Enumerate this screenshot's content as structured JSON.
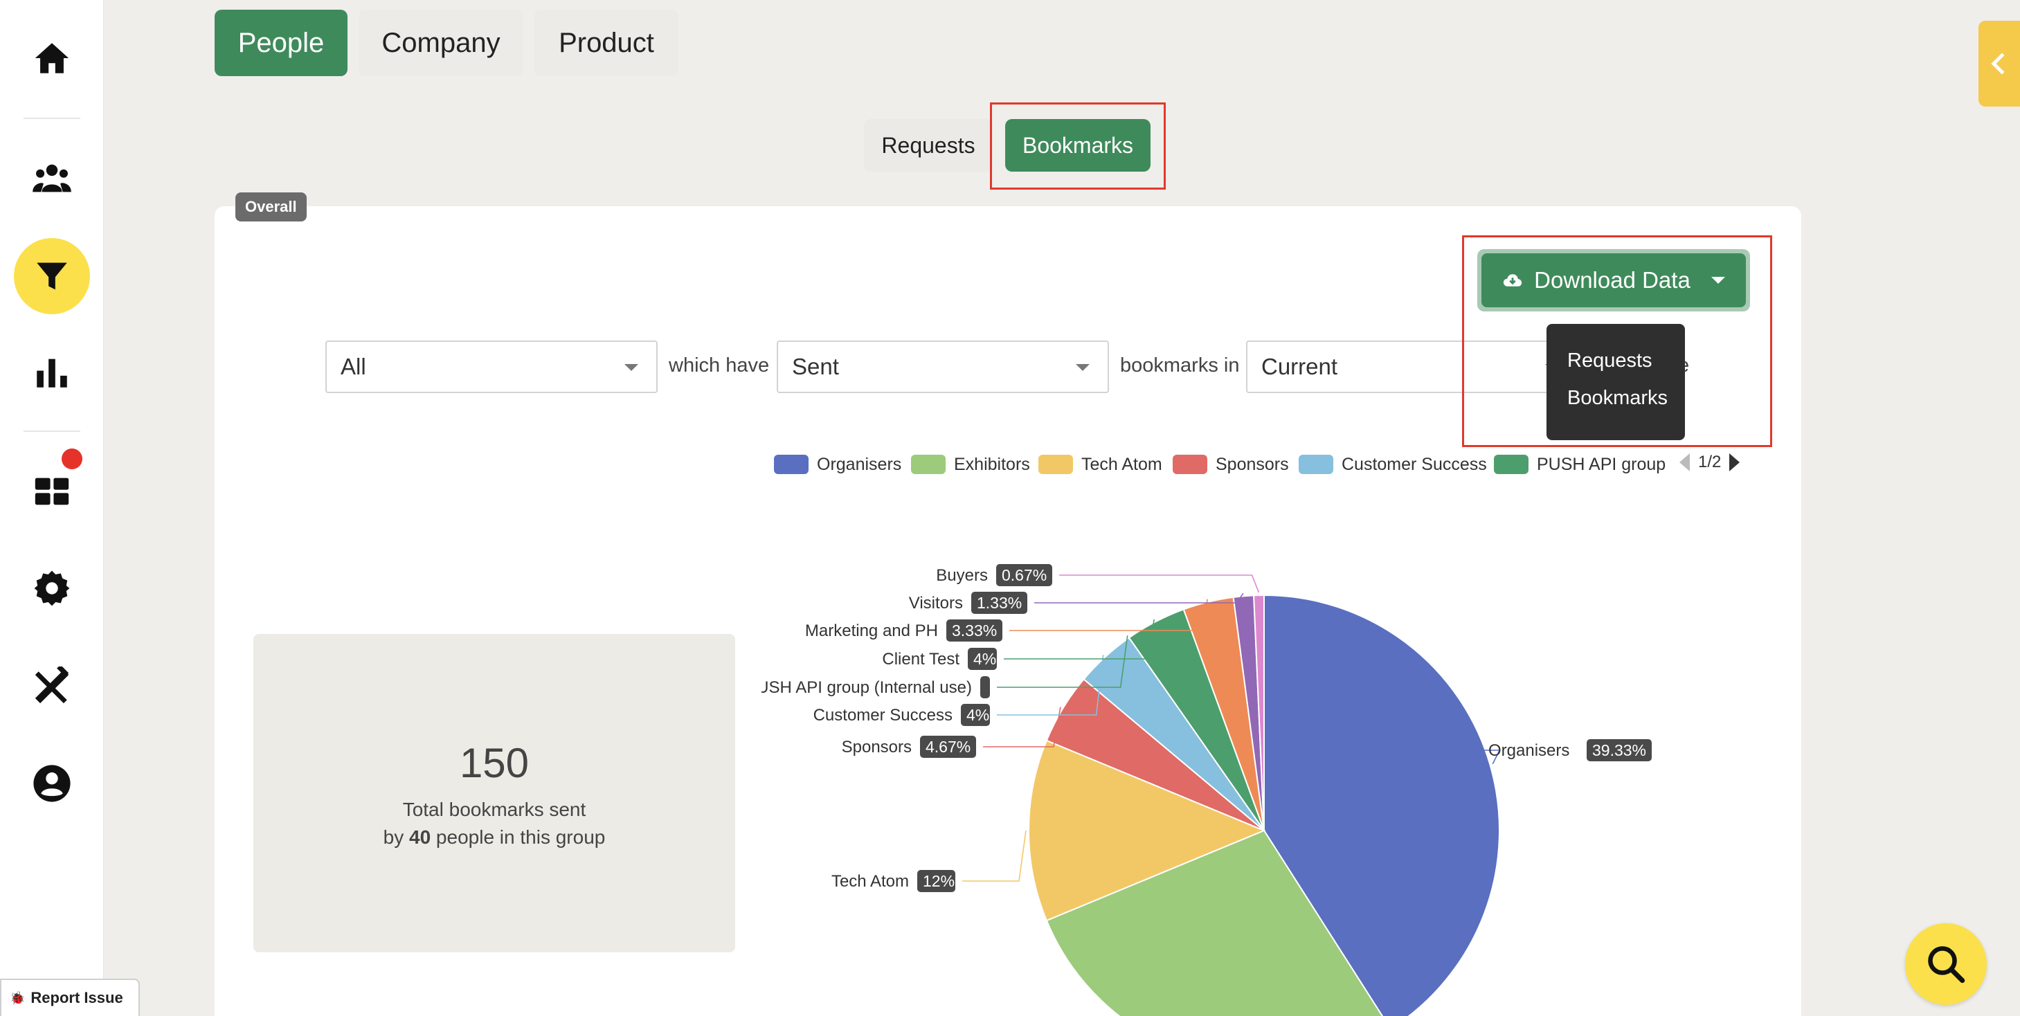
{
  "sidebar": {
    "icons": [
      "home-icon",
      "people-icon",
      "filter-icon",
      "chart-icon",
      "widgets-icon",
      "settings-icon",
      "tools-icon",
      "account-icon"
    ],
    "active": "filter-icon",
    "report_issue_label": "Report Issue"
  },
  "top_tabs": [
    {
      "label": "People",
      "active": true
    },
    {
      "label": "Company",
      "active": false
    },
    {
      "label": "Product",
      "active": false
    }
  ],
  "sub_tabs": [
    {
      "label": "Requests",
      "active": false
    },
    {
      "label": "Bookmarks",
      "active": true
    }
  ],
  "overall_badge": "Overall",
  "download": {
    "label": "Download Data",
    "menu": [
      "Requests",
      "Bookmarks"
    ]
  },
  "filters": {
    "group_value": "All",
    "connector1": "which have",
    "direction_value": "Sent",
    "connector2": "bookmarks in",
    "period_value": "Current",
    "trailing_fragment": "e"
  },
  "legend": {
    "items": [
      {
        "label": "Organisers",
        "color": "#5a6fc0"
      },
      {
        "label": "Exhibitors",
        "color": "#9ccb7b"
      },
      {
        "label": "Tech Atom",
        "color": "#f2c867"
      },
      {
        "label": "Sponsors",
        "color": "#e06a65"
      },
      {
        "label": "Customer Success",
        "color": "#86c0de"
      },
      {
        "label": "PUSH API group",
        "color": "#4d9e6d"
      }
    ],
    "page": "1/2"
  },
  "stats": {
    "total": "150",
    "label": "Total bookmarks sent",
    "by_prefix": "by ",
    "people_count": "40",
    "by_suffix": " people in this group"
  },
  "chart_data": {
    "type": "pie",
    "slices": [
      {
        "label": "Organisers",
        "value": 39.33,
        "display": "39.33%",
        "color": "#5a6fc0"
      },
      {
        "label": "Exhibitors",
        "value": 26.67,
        "display": "",
        "color": "#9ccb7b"
      },
      {
        "label": "Tech Atom",
        "value": 12,
        "display": "12%",
        "color": "#f2c867"
      },
      {
        "label": "Sponsors",
        "value": 4.67,
        "display": "4.67%",
        "color": "#e06a65"
      },
      {
        "label": "Customer Success",
        "value": 4,
        "display": "4%",
        "color": "#86c0de"
      },
      {
        "label": "PUSH API group (Internal use)",
        "value": 0,
        "display": "",
        "color": "#4d9e6d"
      },
      {
        "label": "Client Test",
        "value": 4,
        "display": "4%",
        "color": "#4d9e6d"
      },
      {
        "label": "Marketing and PH",
        "value": 3.33,
        "display": "3.33%",
        "color": "#ee8a55"
      },
      {
        "label": "Visitors",
        "value": 1.33,
        "display": "1.33%",
        "color": "#9068b5"
      },
      {
        "label": "Buyers",
        "value": 0.67,
        "display": "0.67%",
        "color": "#dc88cf"
      }
    ]
  }
}
